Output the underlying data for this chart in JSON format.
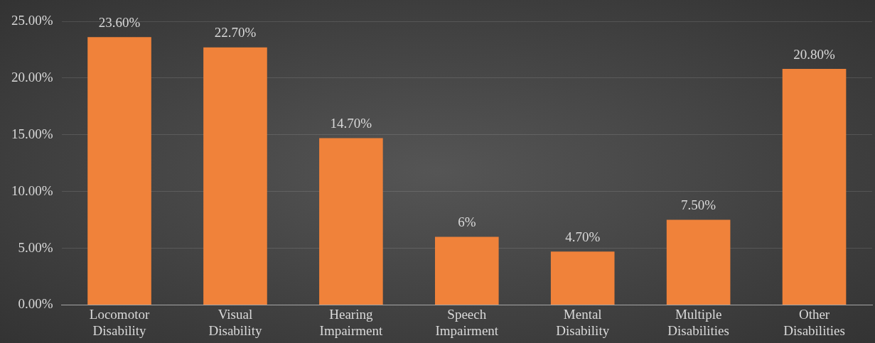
{
  "chart_data": {
    "type": "bar",
    "categories": [
      "Locomotor Disability",
      "Visual Disability",
      "Hearing Impairment",
      "Speech Impairment",
      "Mental Disability",
      "Multiple Disabilities",
      "Other Disabilities"
    ],
    "values": [
      23.6,
      22.7,
      14.7,
      6,
      4.7,
      7.5,
      20.8
    ],
    "value_labels": [
      "23.60%",
      "22.70%",
      "14.70%",
      "6%",
      "4.70%",
      "7.50%",
      "20.80%"
    ],
    "color": "#f0823a",
    "ylim": [
      0,
      25
    ],
    "yticks": [
      {
        "value": 0,
        "label": "0.00%"
      },
      {
        "value": 5,
        "label": "5.00%"
      },
      {
        "value": 10,
        "label": "10.00%"
      },
      {
        "value": 15,
        "label": "15.00%"
      },
      {
        "value": 20,
        "label": "20.00%"
      },
      {
        "value": 25,
        "label": "25.00%"
      }
    ],
    "grid": "y",
    "legend": false
  }
}
